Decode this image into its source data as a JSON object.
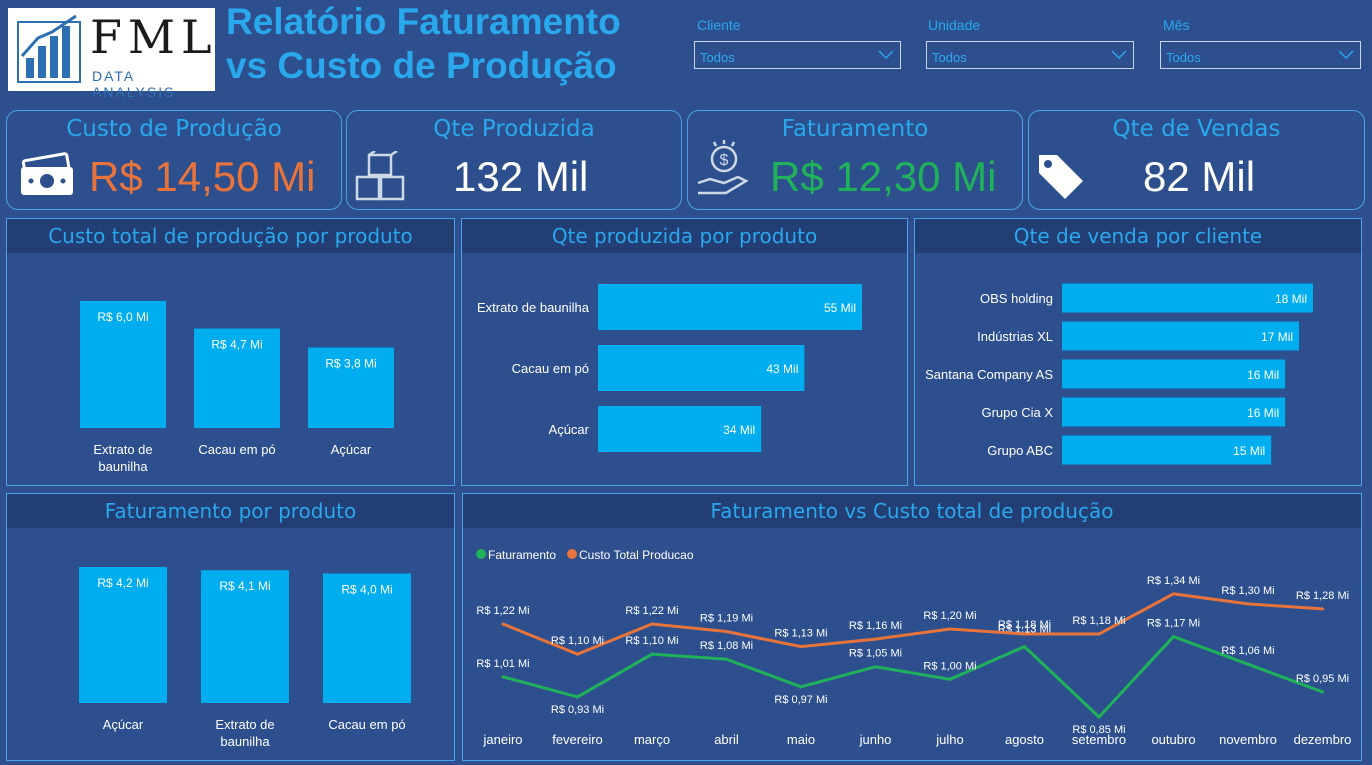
{
  "header": {
    "logo_text": "FML",
    "logo_sub": "DATA ANALYSIS",
    "title_line1": "Relatório Faturamento",
    "title_line2": "vs Custo de Produção"
  },
  "filters": [
    {
      "label": "Cliente",
      "value": "Todos"
    },
    {
      "label": "Unidade",
      "value": "Todos"
    },
    {
      "label": "Mês",
      "value": "Todos"
    }
  ],
  "kpis": [
    {
      "title": "Custo de Produção",
      "value": "R$ 14,50 Mi",
      "color": "#e8743b",
      "icon": "money-icon"
    },
    {
      "title": "Qte Produzida",
      "value": "132 Mil",
      "color": "#ffffff",
      "icon": "boxes-icon"
    },
    {
      "title": "Faturamento",
      "value": "R$ 12,30 Mi",
      "color": "#1fb25a",
      "icon": "hand-coin-icon"
    },
    {
      "title": "Qte de Vendas",
      "value": "82 Mil",
      "color": "#ffffff",
      "icon": "price-tag-icon"
    }
  ],
  "colors": {
    "bar": "#00aeef",
    "faturamento": "#1fb25a",
    "custo": "#e8743b"
  },
  "chart_data": [
    {
      "type": "bar",
      "title": "Custo total de produção por produto",
      "categories": [
        [
          "Extrato de",
          "baunilha"
        ],
        [
          "Cacau em pó"
        ],
        [
          "Açúcar"
        ]
      ],
      "values": [
        6.0,
        4.7,
        3.8
      ],
      "labels": [
        "R$ 6,0 Mi",
        "R$ 4,7 Mi",
        "R$ 3,8 Mi"
      ]
    },
    {
      "type": "bar",
      "orientation": "horizontal",
      "title": "Qte produzida por produto",
      "categories": [
        "Extrato de baunilha",
        "Cacau em pó",
        "Açúcar"
      ],
      "values": [
        55,
        43,
        34
      ],
      "labels": [
        "55 Mil",
        "43 Mil",
        "34 Mil"
      ]
    },
    {
      "type": "bar",
      "orientation": "horizontal",
      "title": "Qte de venda  por cliente",
      "categories": [
        "OBS holding",
        "Indústrias XL",
        "Santana Company AS",
        "Grupo Cia X",
        "Grupo ABC"
      ],
      "values": [
        18,
        17,
        16,
        16,
        15
      ],
      "labels": [
        "18 Mil",
        "17 Mil",
        "16 Mil",
        "16 Mil",
        "15 Mil"
      ]
    },
    {
      "type": "bar",
      "title": "Faturamento por produto",
      "categories": [
        [
          "Açúcar"
        ],
        [
          "Extrato de",
          "baunilha"
        ],
        [
          "Cacau em pó"
        ]
      ],
      "values": [
        4.2,
        4.1,
        4.0
      ],
      "labels": [
        "R$ 4,2 Mi",
        "R$ 4,1 Mi",
        "R$ 4,0 Mi"
      ]
    },
    {
      "type": "line",
      "title": "Faturamento vs Custo total de produção",
      "categories": [
        "janeiro",
        "fevereiro",
        "março",
        "abril",
        "maio",
        "junho",
        "julho",
        "agosto",
        "setembro",
        "outubro",
        "novembro",
        "dezembro"
      ],
      "series": [
        {
          "name": "Faturamento",
          "values": [
            1.01,
            0.93,
            1.1,
            1.08,
            0.97,
            1.05,
            1.0,
            1.13,
            0.85,
            1.17,
            1.06,
            0.95
          ],
          "labels": [
            "R$ 1,01 Mi",
            "R$ 0,93 Mi",
            "R$ 1,10 Mi",
            "R$ 1,08 Mi",
            "R$ 0,97 Mi",
            "R$ 1,05 Mi",
            "R$ 1,00 Mi",
            "R$ 1,13 Mi",
            "R$ 0,85 Mi",
            "R$ 1,17 Mi",
            "R$ 1,06 Mi",
            "R$ 0,95 Mi"
          ]
        },
        {
          "name": "Custo Total Producao",
          "values": [
            1.22,
            1.1,
            1.22,
            1.19,
            1.13,
            1.16,
            1.2,
            1.18,
            1.18,
            1.34,
            1.3,
            1.28
          ],
          "labels": [
            "R$ 1,22 Mi",
            "R$ 1,10 Mi",
            "R$ 1,22 Mi",
            "R$ 1,19 Mi",
            "R$ 1,13 Mi",
            "R$ 1,16 Mi",
            "R$ 1,20 Mi",
            "R$ 1,18 Mi",
            "R$ 1,18 Mi",
            "R$ 1,34 Mi",
            "R$ 1,30 Mi",
            "R$ 1,28 Mi"
          ]
        }
      ],
      "legend": "top-left"
    }
  ]
}
